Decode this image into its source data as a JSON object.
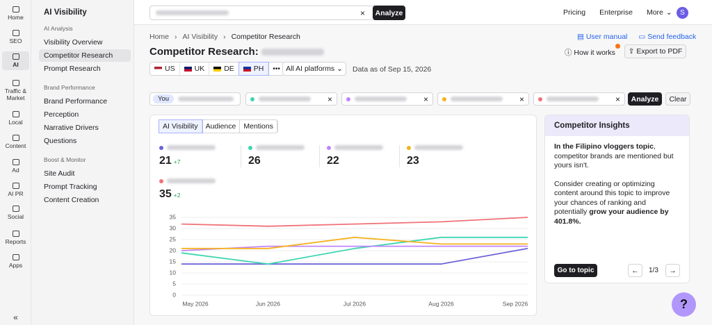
{
  "topbar": {
    "search_button": "Analyze",
    "nav": [
      "Pricing",
      "Enterprise",
      "More"
    ],
    "avatar": "S"
  },
  "rail": [
    "Home",
    "SEO",
    "AI",
    "Traffic & Market",
    "Local",
    "Content",
    "Ad",
    "AI PR",
    "Social",
    "Reports",
    "Apps"
  ],
  "sidebar": {
    "title": "AI Visibility",
    "sections": [
      {
        "heading": "AI Analysis",
        "items": [
          "Visibility Overview",
          "Competitor Research",
          "Prompt Research"
        ]
      },
      {
        "heading": "Brand Performance",
        "items": [
          "Brand Performance",
          "Perception",
          "Narrative Drivers",
          "Questions"
        ]
      },
      {
        "heading": "Boost & Monitor",
        "items": [
          "Site Audit",
          "Prompt Tracking",
          "Content Creation"
        ]
      }
    ]
  },
  "breadcrumb": [
    "Home",
    "AI Visibility",
    "Competitor Research"
  ],
  "page": {
    "title": "Competitor Research:",
    "links": [
      "User manual",
      "Send feedback"
    ],
    "how_it_works": "How it works",
    "export": "Export to PDF"
  },
  "countries": [
    "US",
    "UK",
    "DE",
    "PH"
  ],
  "platforms": "All AI platforms",
  "data_date": "Data as of Sep 15, 2026",
  "competitors": {
    "you": "You",
    "analyze": "Analyze",
    "clear": "Clear"
  },
  "tabs": [
    "AI Visibility",
    "Audience",
    "Mentions"
  ],
  "chart": {
    "type": "line",
    "categories": [
      "May 2026",
      "Jun 2026",
      "Jul 2026",
      "Aug 2026",
      "Sep 2026"
    ],
    "ylim": [
      0,
      35
    ],
    "yticks": [
      0,
      5,
      10,
      15,
      20,
      25,
      30,
      35
    ],
    "grid": true,
    "series": [
      {
        "color": "#6b63d6",
        "values": [
          14,
          14,
          14,
          14,
          21
        ],
        "delta": "+7"
      },
      {
        "color": "#3dd6b0",
        "values": [
          19,
          14,
          21,
          26,
          26
        ]
      },
      {
        "color": "#c084fc",
        "values": [
          20,
          22,
          22,
          22,
          22
        ]
      },
      {
        "color": "#f5b21e",
        "values": [
          21,
          21,
          26,
          23,
          23
        ]
      },
      {
        "color": "#f07178",
        "values": [
          32,
          31,
          32,
          33,
          35
        ],
        "delta": "+2"
      }
    ]
  },
  "insights": {
    "title": "Competitor Insights",
    "p1": {
      "bold": "In the Filipino vloggers topic",
      "text": ", competitor brands are mentioned but yours isn't."
    },
    "p2": {
      "text": "Consider creating or optimizing content around this topic to improve your chances of ranking and potentially ",
      "bold": "grow your audience by 401.8%."
    },
    "button": "Go to topic",
    "pager": "1/3"
  },
  "help": "?"
}
